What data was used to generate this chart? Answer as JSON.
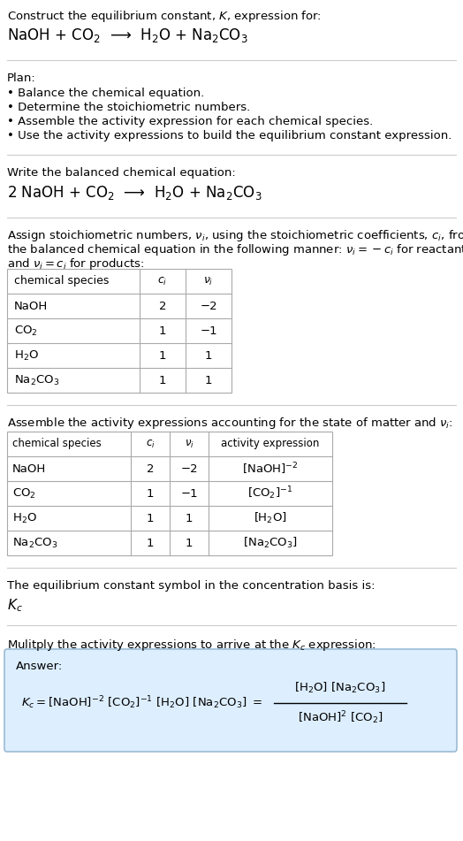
{
  "title_line1": "Construct the equilibrium constant, $K$, expression for:",
  "title_line2": "NaOH + CO$_2$  ⟶  H$_2$O + Na$_2$CO$_3$",
  "plan_header": "Plan:",
  "plan_items": [
    "• Balance the chemical equation.",
    "• Determine the stoichiometric numbers.",
    "• Assemble the activity expression for each chemical species.",
    "• Use the activity expressions to build the equilibrium constant expression."
  ],
  "balanced_header": "Write the balanced chemical equation:",
  "balanced_eq": "2 NaOH + CO$_2$  ⟶  H$_2$O + Na$_2$CO$_3$",
  "table1_cols": [
    "chemical species",
    "$c_i$",
    "$\\nu_i$"
  ],
  "table1_rows": [
    [
      "NaOH",
      "2",
      "−2"
    ],
    [
      "CO$_2$",
      "1",
      "−1"
    ],
    [
      "H$_2$O",
      "1",
      "1"
    ],
    [
      "Na$_2$CO$_3$",
      "1",
      "1"
    ]
  ],
  "table2_cols": [
    "chemical species",
    "$c_i$",
    "$\\nu_i$",
    "activity expression"
  ],
  "table2_rows": [
    [
      "NaOH",
      "2",
      "−2",
      "[NaOH]$^{-2}$"
    ],
    [
      "CO$_2$",
      "1",
      "−1",
      "[CO$_2$]$^{-1}$"
    ],
    [
      "H$_2$O",
      "1",
      "1",
      "[H$_2$O]"
    ],
    [
      "Na$_2$CO$_3$",
      "1",
      "1",
      "[Na$_2$CO$_3$]"
    ]
  ],
  "kc_header": "The equilibrium constant symbol in the concentration basis is:",
  "kc_symbol": "$K_c$",
  "multiply_header": "Mulitply the activity expressions to arrive at the $K_c$ expression:",
  "answer_label": "Answer:",
  "answer_box_color": "#ddeeff",
  "answer_box_border": "#9bbbd4",
  "bg_color": "#ffffff",
  "text_color": "#000000",
  "table_border_color": "#aaaaaa",
  "section_line_color": "#cccccc",
  "font_size": 10.0
}
